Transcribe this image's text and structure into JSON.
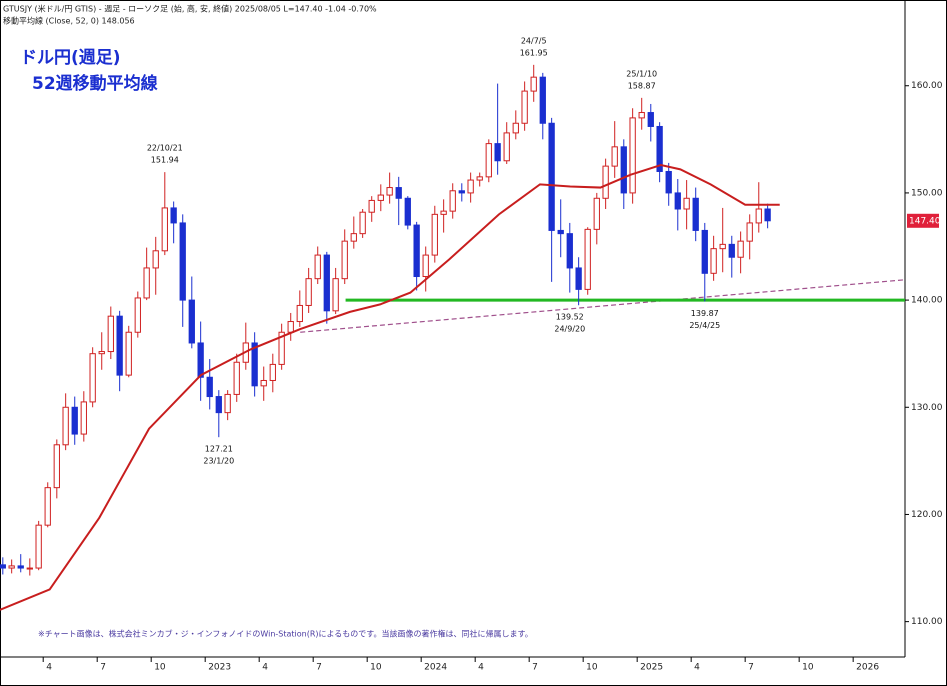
{
  "chart_data": {
    "type": "candlestick",
    "header": "GTUSJY (米ドル/円 GTIS) - 週足 - ローソク足 (始, 高, 安, 終値)  2025/08/05 L=147.40 -1.04 -0.70%",
    "ma_header": "移動平均線 (Close, 52, 0) 148.056",
    "title": "ドル円(週足)",
    "subtitle": "52週移動平均線",
    "footnote": "※チャート画像は、株式会社ミンカブ・ジ・インフォノイドのWin-Station(R)によるものです。当該画像の著作権は、同社に帰属します。",
    "up_color": "#d02020",
    "down_color": "#1a2fd0",
    "x": [
      2022.063,
      2022.104,
      2022.146,
      2022.188,
      2022.229,
      2022.271,
      2022.313,
      2022.354,
      2022.396,
      2022.438,
      2022.479,
      2022.521,
      2022.563,
      2022.604,
      2022.646,
      2022.688,
      2022.729,
      2022.771,
      2022.813,
      2022.854,
      2022.896,
      2022.938,
      2022.979,
      2023.021,
      2023.063,
      2023.104,
      2023.146,
      2023.188,
      2023.229,
      2023.271,
      2023.313,
      2023.354,
      2023.396,
      2023.438,
      2023.479,
      2023.521,
      2023.563,
      2023.604,
      2023.646,
      2023.688,
      2023.729,
      2023.771,
      2023.813,
      2023.854,
      2023.896,
      2023.938,
      2023.979,
      2024.021,
      2024.063,
      2024.104,
      2024.146,
      2024.188,
      2024.229,
      2024.271,
      2024.313,
      2024.354,
      2024.396,
      2024.438,
      2024.479,
      2024.521,
      2024.563,
      2024.604,
      2024.646,
      2024.688,
      2024.729,
      2024.771,
      2024.813,
      2024.854,
      2024.896,
      2024.938,
      2024.979,
      2025.021,
      2025.063,
      2025.104,
      2025.146,
      2025.188,
      2025.229,
      2025.271,
      2025.313,
      2025.354,
      2025.396,
      2025.438,
      2025.479,
      2025.521,
      2025.563,
      2025.604
    ],
    "open": [
      115.3,
      115.0,
      115.2,
      115.0,
      115.0,
      119.0,
      122.5,
      126.5,
      130.0,
      127.5,
      130.5,
      135.0,
      135.2,
      138.5,
      133.0,
      137.0,
      140.2,
      143.0,
      144.6,
      148.6,
      147.2,
      140.0,
      136.0,
      132.8,
      131.0,
      129.5,
      131.2,
      134.2,
      136.0,
      132.0,
      132.5,
      134.0,
      137.0,
      138.0,
      139.5,
      142.0,
      144.2,
      139.0,
      142.0,
      145.5,
      146.2,
      148.2,
      149.3,
      149.8,
      150.5,
      149.5,
      147.0,
      142.2,
      144.2,
      148.0,
      148.3,
      150.2,
      150.0,
      151.2,
      151.5,
      154.6,
      153.0,
      155.6,
      156.5,
      159.5,
      160.8,
      156.5,
      146.5,
      146.2,
      143.0,
      141.0,
      146.6,
      149.5,
      152.5,
      154.3,
      150.0,
      157.0,
      157.5,
      156.2,
      152.0,
      150.0,
      148.5,
      149.5,
      146.5,
      142.5,
      144.8,
      145.2,
      144.0,
      145.5,
      147.2,
      148.5
    ],
    "high": [
      116.0,
      115.8,
      116.3,
      115.9,
      119.4,
      123.0,
      127.0,
      131.3,
      131.0,
      131.5,
      135.6,
      137.0,
      139.4,
      139.0,
      137.6,
      140.8,
      144.9,
      145.9,
      151.94,
      149.2,
      148.0,
      142.2,
      138.0,
      134.5,
      131.6,
      131.6,
      135.0,
      137.9,
      137.0,
      133.8,
      135.0,
      137.8,
      138.8,
      140.9,
      143.0,
      145.0,
      144.5,
      143.0,
      146.6,
      147.8,
      148.5,
      149.7,
      150.8,
      151.9,
      151.5,
      149.7,
      147.3,
      145.0,
      148.8,
      149.4,
      150.9,
      150.9,
      151.9,
      151.9,
      155.0,
      160.2,
      156.6,
      157.7,
      160.4,
      161.95,
      161.2,
      157.0,
      149.4,
      147.2,
      144.0,
      146.8,
      150.0,
      153.2,
      156.7,
      155.0,
      157.9,
      158.87,
      158.3,
      156.6,
      152.8,
      151.3,
      151.2,
      150.5,
      147.2,
      146.0,
      148.6,
      146.0,
      146.4,
      148.0,
      151.0,
      149.0
    ],
    "low": [
      114.4,
      114.5,
      114.6,
      114.3,
      114.8,
      118.8,
      121.5,
      126.0,
      126.5,
      126.8,
      130.0,
      133.5,
      134.5,
      131.5,
      132.8,
      136.5,
      140.0,
      140.5,
      144.2,
      145.3,
      137.5,
      135.5,
      130.6,
      129.8,
      127.21,
      128.8,
      130.5,
      133.5,
      131.0,
      130.6,
      131.4,
      133.5,
      136.2,
      137.5,
      138.8,
      141.5,
      137.8,
      138.7,
      141.5,
      144.8,
      145.8,
      147.3,
      148.3,
      149.0,
      147.0,
      146.6,
      140.9,
      140.8,
      143.5,
      146.3,
      147.6,
      149.2,
      149.1,
      150.6,
      151.0,
      151.7,
      152.7,
      155.0,
      155.8,
      158.5,
      155.0,
      141.7,
      144.0,
      140.7,
      139.52,
      140.5,
      145.2,
      148.5,
      151.4,
      148.5,
      149.0,
      155.9,
      154.8,
      151.0,
      148.8,
      146.5,
      146.6,
      145.5,
      139.87,
      141.8,
      142.6,
      142.1,
      142.5,
      143.8,
      146.3,
      146.7
    ],
    "close": [
      115.0,
      115.2,
      115.0,
      115.0,
      119.0,
      122.5,
      126.5,
      130.0,
      127.5,
      130.5,
      135.0,
      135.2,
      138.5,
      133.0,
      137.0,
      140.2,
      143.0,
      144.6,
      148.6,
      147.2,
      140.0,
      136.0,
      132.8,
      131.0,
      129.5,
      131.2,
      134.2,
      136.0,
      132.0,
      132.5,
      134.0,
      137.0,
      138.0,
      139.5,
      142.0,
      144.2,
      139.0,
      142.0,
      145.5,
      146.2,
      148.2,
      149.3,
      149.8,
      150.5,
      149.5,
      147.0,
      142.2,
      144.2,
      148.0,
      148.3,
      150.2,
      150.0,
      151.2,
      151.5,
      154.6,
      153.0,
      155.6,
      156.5,
      159.5,
      160.8,
      156.5,
      146.5,
      146.2,
      143.0,
      141.0,
      146.6,
      149.5,
      152.5,
      154.3,
      150.0,
      157.0,
      157.5,
      156.2,
      152.0,
      150.0,
      148.5,
      149.5,
      146.5,
      142.5,
      144.8,
      145.2,
      144.0,
      145.5,
      147.2,
      148.5,
      147.4
    ],
    "ma": {
      "color": "#c81e1e",
      "x": [
        2022.05,
        2022.28,
        2022.51,
        2022.74,
        2022.98,
        2023.21,
        2023.44,
        2023.67,
        2023.81,
        2023.95,
        2024.13,
        2024.36,
        2024.55,
        2024.69,
        2024.83,
        2024.97,
        2025.11,
        2025.2,
        2025.34,
        2025.5,
        2025.66
      ],
      "values": [
        111.1,
        113,
        119.7,
        128,
        133,
        135.4,
        137.3,
        138.9,
        139.6,
        140.7,
        143.8,
        148,
        150.8,
        150.6,
        150.5,
        151.7,
        152.6,
        152.2,
        150.8,
        148.9,
        148.9
      ]
    },
    "hline": {
      "value": 140,
      "x_start": 2023.65,
      "color": "#22b822"
    },
    "trendline": {
      "x": [
        2023.44,
        2026.24
      ],
      "values": [
        137.0,
        141.9
      ],
      "color": "#a0508c"
    },
    "last_price": {
      "value": 147.4,
      "label": "147.40",
      "color": "#e0203a"
    },
    "annotations": [
      {
        "date": "22/10/21",
        "value": 151.94,
        "x": 2022.813,
        "position": "above"
      },
      {
        "date": "24/7/5",
        "value": 161.95,
        "x": 2024.521,
        "position": "above"
      },
      {
        "date": "25/1/10",
        "value": 158.87,
        "x": 2025.021,
        "position": "above"
      },
      {
        "date": "23/1/20",
        "value": 127.21,
        "x": 2023.063,
        "position": "below"
      },
      {
        "date": "24/9/20",
        "value": 139.52,
        "x": 2024.688,
        "position": "below"
      },
      {
        "date": "25/4/25",
        "value": 139.87,
        "x": 2025.313,
        "position": "below"
      }
    ],
    "xlim": [
      2022.05,
      2026.24
    ],
    "xticks": [
      {
        "value": 2022.25,
        "label": "4"
      },
      {
        "value": 2022.5,
        "label": "7"
      },
      {
        "value": 2022.75,
        "label": "10"
      },
      2023,
      {
        "value": 2023.25,
        "label": "4"
      },
      {
        "value": 2023.5,
        "label": "7"
      },
      {
        "value": 2023.75,
        "label": "10"
      },
      2024,
      {
        "value": 2024.25,
        "label": "4"
      },
      {
        "value": 2024.5,
        "label": "7"
      },
      {
        "value": 2024.75,
        "label": "10"
      },
      2025,
      {
        "value": 2025.25,
        "label": "4"
      },
      {
        "value": 2025.5,
        "label": "7"
      },
      {
        "value": 2025.75,
        "label": "10"
      },
      2026
    ],
    "ylim": [
      106.7,
      168.0
    ],
    "yticks": [
      {
        "value": 110,
        "label": "110.00"
      },
      {
        "value": 120,
        "label": "120.00"
      },
      {
        "value": 130,
        "label": "130.00"
      },
      {
        "value": 140,
        "label": "140.00"
      },
      {
        "value": 150,
        "label": "150.00"
      },
      {
        "value": 160,
        "label": "160.00"
      }
    ]
  }
}
